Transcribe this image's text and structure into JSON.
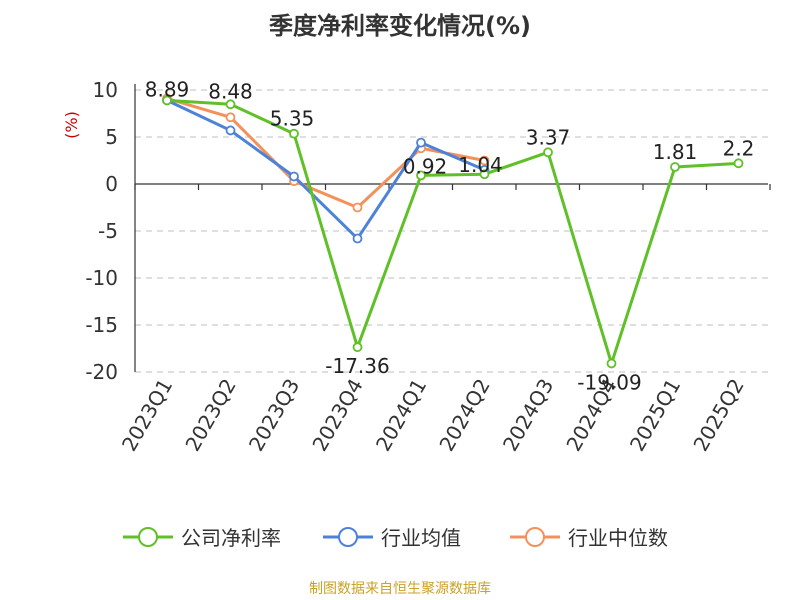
{
  "chart_data": {
    "type": "line",
    "title": "季度净利率变化情况(%)",
    "ylabel": "(%)",
    "ylim": [
      -20,
      10
    ],
    "yticks": [
      10,
      5,
      0,
      -5,
      -10,
      -15,
      -20
    ],
    "categories": [
      "2023Q1",
      "2023Q2",
      "2023Q3",
      "2023Q4",
      "2024Q1",
      "2024Q2",
      "2024Q3",
      "2024Q4",
      "2025Q1",
      "2025Q2"
    ],
    "grid": true,
    "legend_position": "bottom",
    "series": [
      {
        "name": "公司净利率",
        "color": "#5fc028",
        "values": [
          8.89,
          8.48,
          5.35,
          -17.36,
          0.92,
          1.04,
          3.37,
          -19.09,
          1.81,
          2.2
        ],
        "labels": [
          "8.89",
          "8.48",
          "5.35",
          "-17.36",
          "0.92",
          "1.04",
          "3.37",
          "-19.09",
          "1.81",
          "2.2"
        ]
      },
      {
        "name": "行业均值",
        "color": "#4c82d8",
        "values": [
          8.9,
          5.7,
          0.8,
          -5.8,
          4.4,
          1.5,
          null,
          null,
          null,
          null
        ]
      },
      {
        "name": "行业中位数",
        "color": "#f4915a",
        "values": [
          9.1,
          7.1,
          0.3,
          -2.5,
          3.8,
          2.5,
          null,
          null,
          null,
          null
        ]
      }
    ]
  },
  "source": {
    "text": "制图数据来自恒生聚源数据库",
    "color": "#c9a227"
  },
  "axis_label_color": "#cc0000"
}
